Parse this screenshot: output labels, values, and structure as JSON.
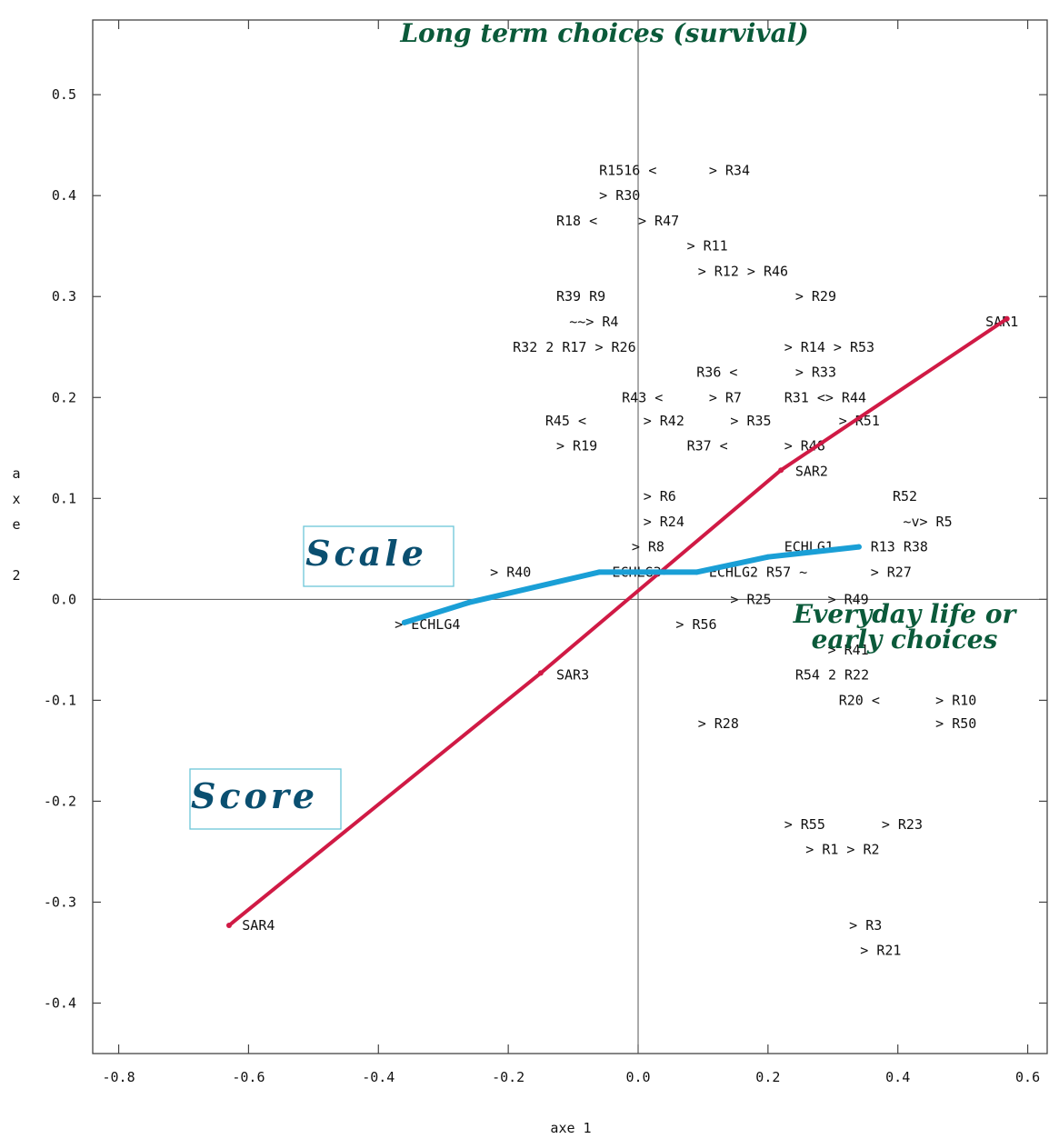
{
  "chart_data": {
    "type": "scatter",
    "title": "",
    "xlabel": "axe 1",
    "ylabel": "axe 2",
    "xlim": [
      -0.84,
      0.63
    ],
    "ylim": [
      -0.45,
      0.574
    ],
    "xticks": [
      "-0.8",
      "-0.6",
      "-0.4",
      "-0.2",
      "0.0",
      "0.2",
      "0.4",
      "0.6"
    ],
    "yticks": [
      "0.5",
      "0.4",
      "0.3",
      "0.2",
      "0.1",
      "0.0",
      "-0.1",
      "-0.2",
      "-0.3",
      "-0.4"
    ],
    "xtick_values": [
      -0.8,
      -0.6,
      -0.4,
      -0.2,
      0.0,
      0.2,
      0.4,
      0.6
    ],
    "ytick_values": [
      0.5,
      0.4,
      0.3,
      0.2,
      0.1,
      0.0,
      -0.1,
      -0.2,
      -0.3,
      -0.4
    ],
    "point_labels": [
      {
        "text": "R1516 <",
        "x": -0.06,
        "y": 0.425
      },
      {
        "text": "> R34",
        "x": 0.109,
        "y": 0.425
      },
      {
        "text": "> R30",
        "x": -0.06,
        "y": 0.4
      },
      {
        "text": "R18 <",
        "x": -0.126,
        "y": 0.375
      },
      {
        "text": "> R47",
        "x": 0.0,
        "y": 0.375
      },
      {
        "text": "> R11",
        "x": 0.075,
        "y": 0.35
      },
      {
        "text": "> R12 > R46",
        "x": 0.092,
        "y": 0.325
      },
      {
        "text": "> R29",
        "x": 0.242,
        "y": 0.3
      },
      {
        "text": "R39 R9",
        "x": -0.126,
        "y": 0.3
      },
      {
        "text": "~~> R4",
        "x": -0.106,
        "y": 0.275
      },
      {
        "text": "SAR1",
        "x": 0.535,
        "y": 0.275
      },
      {
        "text": "R32 2 R17 > R26",
        "x": -0.193,
        "y": 0.25
      },
      {
        "text": "> R14 > R53",
        "x": 0.225,
        "y": 0.25
      },
      {
        "text": "R36 <",
        "x": 0.09,
        "y": 0.225
      },
      {
        "text": "> R33",
        "x": 0.242,
        "y": 0.225
      },
      {
        "text": "R43 <",
        "x": -0.025,
        "y": 0.2
      },
      {
        "text": "> R7",
        "x": 0.109,
        "y": 0.2
      },
      {
        "text": "R31 <> R44",
        "x": 0.225,
        "y": 0.2
      },
      {
        "text": "R45 <",
        "x": -0.143,
        "y": 0.177
      },
      {
        "text": "> R42",
        "x": 0.008,
        "y": 0.177
      },
      {
        "text": "> R35",
        "x": 0.142,
        "y": 0.177
      },
      {
        "text": "> R51",
        "x": 0.309,
        "y": 0.177
      },
      {
        "text": "> R19",
        "x": -0.126,
        "y": 0.152
      },
      {
        "text": "R37 <",
        "x": 0.075,
        "y": 0.152
      },
      {
        "text": "> R48",
        "x": 0.225,
        "y": 0.152
      },
      {
        "text": "SAR2",
        "x": 0.242,
        "y": 0.127
      },
      {
        "text": "> R6",
        "x": 0.008,
        "y": 0.102
      },
      {
        "text": "R52",
        "x": 0.392,
        "y": 0.102
      },
      {
        "text": "> R24",
        "x": 0.008,
        "y": 0.077
      },
      {
        "text": "~v> R5",
        "x": 0.408,
        "y": 0.077
      },
      {
        "text": "> R8",
        "x": -0.01,
        "y": 0.052
      },
      {
        "text": "ECHLG1",
        "x": 0.225,
        "y": 0.052
      },
      {
        "text": "R13 R38",
        "x": 0.358,
        "y": 0.052
      },
      {
        "text": "> R40",
        "x": -0.228,
        "y": 0.027
      },
      {
        "text": "ECHLG3",
        "x": -0.04,
        "y": 0.027
      },
      {
        "text": "ECHLG2 R57 ~",
        "x": 0.109,
        "y": 0.027
      },
      {
        "text": "> R27",
        "x": 0.358,
        "y": 0.027
      },
      {
        "text": "> R25",
        "x": 0.142,
        "y": 0.0
      },
      {
        "text": "> R49",
        "x": 0.292,
        "y": 0.0
      },
      {
        "text": "> ECHLG4",
        "x": -0.375,
        "y": -0.025
      },
      {
        "text": "> R56",
        "x": 0.058,
        "y": -0.025
      },
      {
        "text": "> R41",
        "x": 0.292,
        "y": -0.05
      },
      {
        "text": "SAR3",
        "x": -0.126,
        "y": -0.075
      },
      {
        "text": "R54 2 R22",
        "x": 0.242,
        "y": -0.075
      },
      {
        "text": "R20 <",
        "x": 0.309,
        "y": -0.1
      },
      {
        "text": "> R10",
        "x": 0.458,
        "y": -0.1
      },
      {
        "text": "> R28",
        "x": 0.092,
        "y": -0.123
      },
      {
        "text": "> R50",
        "x": 0.458,
        "y": -0.123
      },
      {
        "text": "> R55",
        "x": 0.225,
        "y": -0.223
      },
      {
        "text": "> R23",
        "x": 0.375,
        "y": -0.223
      },
      {
        "text": "> R1 > R2",
        "x": 0.258,
        "y": -0.248
      },
      {
        "text": "SAR4",
        "x": -0.61,
        "y": -0.323
      },
      {
        "text": "> R3",
        "x": 0.325,
        "y": -0.323
      },
      {
        "text": "> R21",
        "x": 0.342,
        "y": -0.348
      }
    ],
    "series": [
      {
        "name": "Score",
        "color": "#d01a45",
        "points": [
          [
            -0.63,
            -0.323
          ],
          [
            -0.15,
            -0.073
          ],
          [
            0.22,
            0.128
          ],
          [
            0.568,
            0.278
          ]
        ]
      },
      {
        "name": "Scale",
        "color": "#1a9fd6",
        "points": [
          [
            -0.36,
            -0.023
          ],
          [
            -0.26,
            -0.003
          ],
          [
            -0.06,
            0.027
          ],
          [
            0.04,
            0.027
          ],
          [
            0.09,
            0.027
          ],
          [
            0.2,
            0.042
          ],
          [
            0.34,
            0.052
          ]
        ]
      }
    ],
    "annotations": {
      "top": "Long term choices (survival)",
      "right_line1": "Everyday life or",
      "right_line2": "early choices",
      "scale_box": "Scale",
      "score_box": "Score"
    },
    "grid": false,
    "colors": {
      "score_line": "#d01a45",
      "scale_line": "#1a9fd6",
      "annotation_green": "#0b5a3a",
      "box_text": "#0a4f70",
      "box_border": "#6cc7d8"
    }
  }
}
